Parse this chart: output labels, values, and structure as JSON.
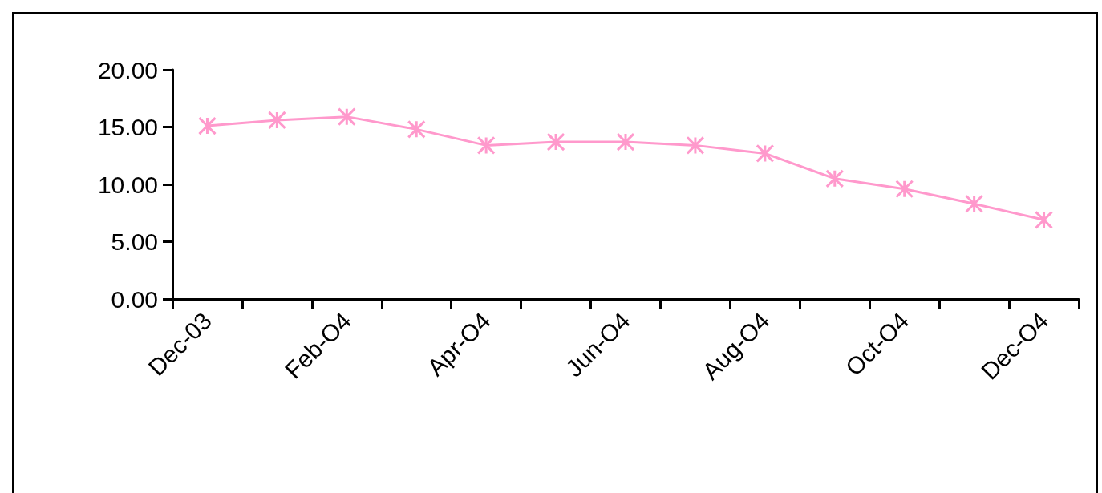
{
  "chart_data": {
    "type": "line",
    "categories": [
      "Dec-03",
      null,
      "Feb-O4",
      null,
      "Apr-O4",
      null,
      "Jun-O4",
      null,
      "Aug-O4",
      null,
      "Oct-O4",
      null,
      "Dec-O4"
    ],
    "series": [
      {
        "color": "#ff99cc",
        "values": [
          15.1,
          15.6,
          15.9,
          14.8,
          13.4,
          13.7,
          13.7,
          13.4,
          12.7,
          10.5,
          9.6,
          8.3,
          6.9
        ]
      }
    ],
    "ylim": [
      0,
      20
    ],
    "yticks": [
      {
        "value": 0,
        "label": "0.00"
      },
      {
        "value": 5,
        "label": "5.00"
      },
      {
        "value": 10,
        "label": "10.00"
      },
      {
        "value": 15,
        "label": "15.00"
      },
      {
        "value": 20,
        "label": "20.00"
      }
    ],
    "grid": false,
    "marker": "cross",
    "line_style": "solid"
  }
}
